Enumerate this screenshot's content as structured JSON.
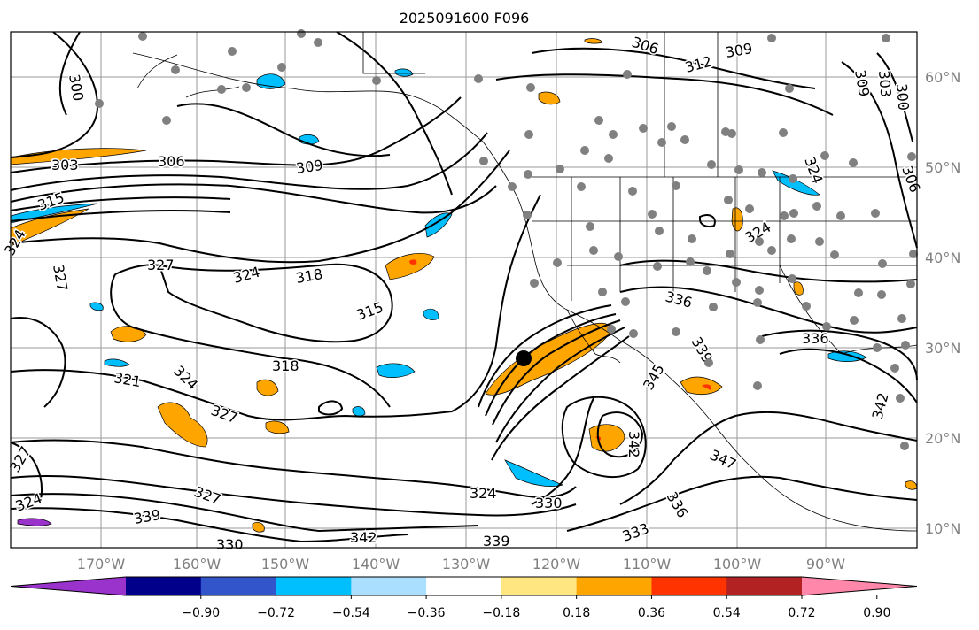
{
  "title": "2025091600 F096",
  "map": {
    "lon_labels": [
      "170°W",
      "160°W",
      "150°W",
      "140°W",
      "130°W",
      "120°W",
      "110°W",
      "100°W",
      "90°W"
    ],
    "lat_labels": [
      "60°N",
      "50°N",
      "40°N",
      "30°N",
      "20°N",
      "10°N"
    ],
    "contour_labels": [
      "306",
      "312",
      "309",
      "300",
      "303",
      "306",
      "309",
      "303",
      "306",
      "300",
      "309",
      "315",
      "324",
      "327",
      "318",
      "315",
      "327",
      "324",
      "318",
      "321",
      "324",
      "327",
      "327",
      "324",
      "327",
      "339",
      "330",
      "324",
      "342",
      "339",
      "330",
      "333",
      "336",
      "342",
      "347",
      "345",
      "339",
      "336",
      "342",
      "336",
      "324",
      "324"
    ],
    "marker": "black-dot"
  },
  "colorbar": {
    "tick_labels": [
      "−0.90",
      "−0.72",
      "−0.54",
      "−0.36",
      "−0.18",
      "0.18",
      "0.36",
      "0.54",
      "0.72",
      "0.90"
    ],
    "colors": [
      "#9933cc",
      "#00008b",
      "#3355cc",
      "#00bfff",
      "#aadfff",
      "#ffffff",
      "#ffe680",
      "#ffa500",
      "#ff3300",
      "#b22222",
      "#ff88aa"
    ],
    "extend": "both"
  }
}
